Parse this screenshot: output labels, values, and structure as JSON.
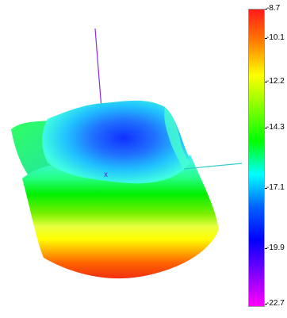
{
  "plot": {
    "origin_marker": "x",
    "axis_colors": {
      "vertical_axis": "#8a2be2",
      "horizontal_axis": "#33cccc",
      "marker": "#3a30d0"
    }
  },
  "colorbar": {
    "max": -8.7,
    "min": -22.7,
    "ticks": [
      "-8.7",
      "-10.1",
      "-12.2",
      "-14.3",
      "-17.1",
      "-19.9",
      "-22.7"
    ],
    "tick_values": [
      -8.7,
      -10.1,
      -12.2,
      -14.3,
      -17.1,
      -19.9,
      -22.7
    ],
    "colors": [
      "#ff1a1a",
      "#ff8000",
      "#ffff00",
      "#80ff00",
      "#00ff00",
      "#00ffff",
      "#0060ff",
      "#0000ff",
      "#8000ff",
      "#ff00ff"
    ]
  }
}
